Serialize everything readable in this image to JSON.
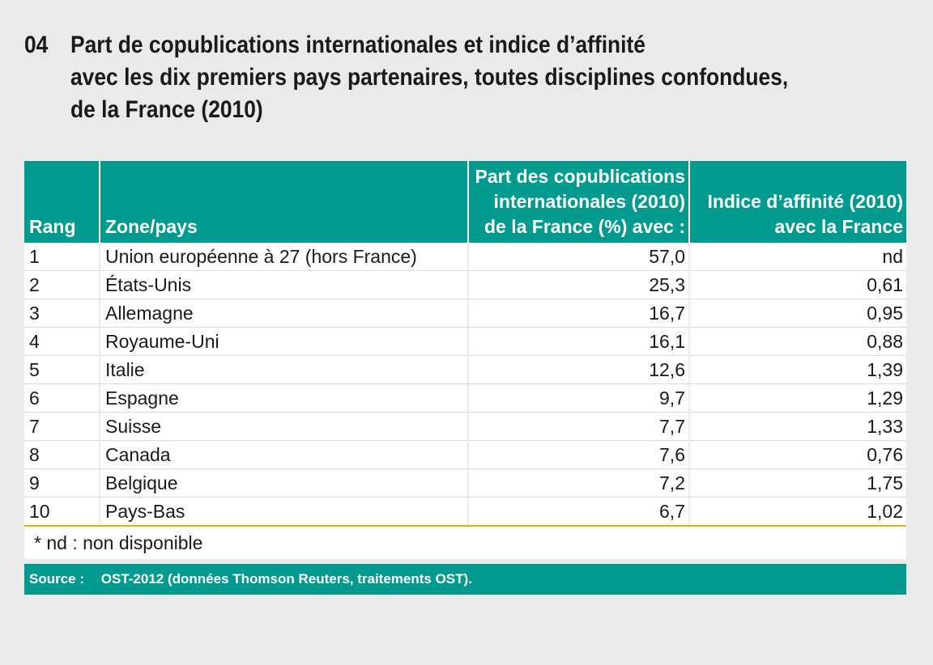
{
  "title": {
    "number": "04",
    "text": "Part de copublications internationales et indice d’affinité\navec les dix premiers pays partenaires, toutes disciplines confondues,\nde la France (2010)"
  },
  "table": {
    "headers": {
      "rang": "Rang",
      "zone": "Zone/pays",
      "part": "Part des copublications internationales (2010) de la France (%) avec :",
      "indice": "Indice d’affinité (2010) avec la France"
    },
    "rows": [
      {
        "rang": "1",
        "zone": "Union européenne à 27 (hors France)",
        "part": "57,0",
        "indice": "nd"
      },
      {
        "rang": "2",
        "zone": "États-Unis",
        "part": "25,3",
        "indice": "0,61"
      },
      {
        "rang": "3",
        "zone": "Allemagne",
        "part": "16,7",
        "indice": "0,95"
      },
      {
        "rang": "4",
        "zone": "Royaume-Uni",
        "part": "16,1",
        "indice": "0,88"
      },
      {
        "rang": "5",
        "zone": "Italie",
        "part": "12,6",
        "indice": "1,39"
      },
      {
        "rang": "6",
        "zone": "Espagne",
        "part": "9,7",
        "indice": "1,29"
      },
      {
        "rang": "7",
        "zone": "Suisse",
        "part": "7,7",
        "indice": "1,33"
      },
      {
        "rang": "8",
        "zone": "Canada",
        "part": "7,6",
        "indice": "0,76"
      },
      {
        "rang": "9",
        "zone": "Belgique",
        "part": "7,2",
        "indice": "1,75"
      },
      {
        "rang": "10",
        "zone": "Pays-Bas",
        "part": "6,7",
        "indice": "1,02"
      }
    ]
  },
  "note": "* nd : non disponible",
  "source": {
    "label": "Source :",
    "text": "OST-2012 (données Thomson Reuters, traitements OST)."
  },
  "colors": {
    "header_bg": "#009b8e",
    "accent_line": "#e6b200",
    "page_bg": "#eaeaea"
  }
}
